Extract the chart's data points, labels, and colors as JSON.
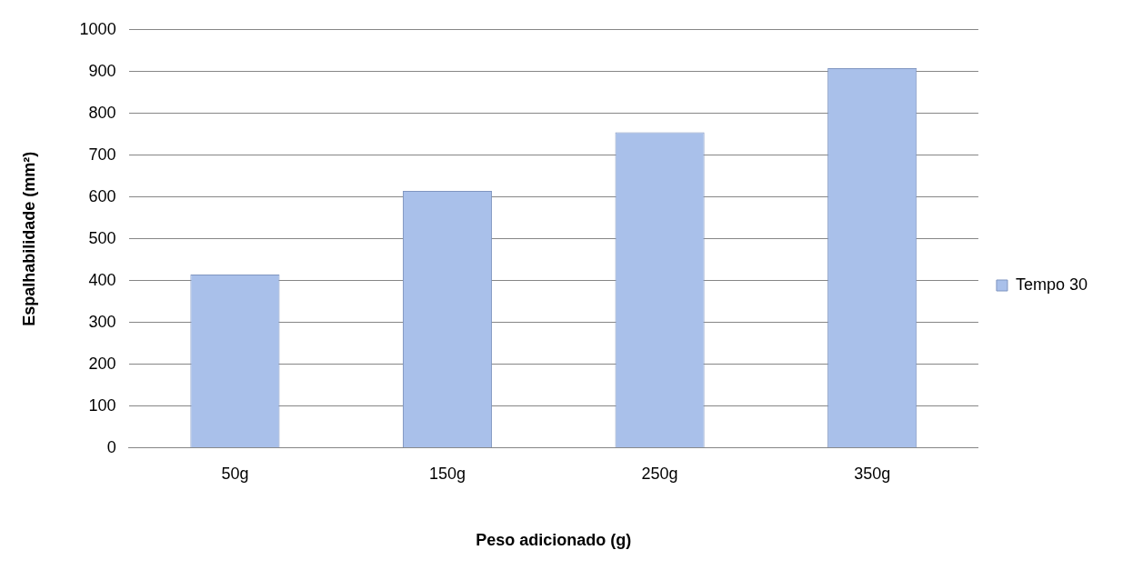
{
  "chart_data": {
    "type": "bar",
    "xlabel": "Peso adicionado (g)",
    "ylabel": "Espalhabilidade (mm²)",
    "categories": [
      "50g",
      "150g",
      "250g",
      "350g"
    ],
    "series": [
      {
        "name": "Tempo 30",
        "color": "#a9c0ea",
        "values": [
          415,
          615,
          755,
          908
        ]
      }
    ],
    "ylim": [
      0,
      1000
    ],
    "yticks": [
      0,
      100,
      200,
      300,
      400,
      500,
      600,
      700,
      800,
      900,
      1000
    ],
    "grid": "y",
    "legend": "right"
  }
}
